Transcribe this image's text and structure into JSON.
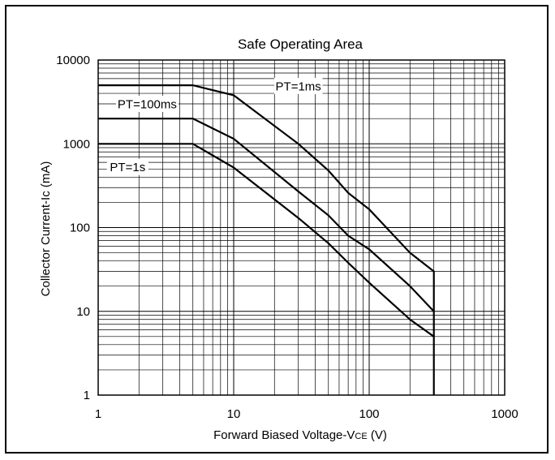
{
  "chart_data": {
    "type": "line",
    "title": "Safe Operating Area",
    "xlabel": "Forward Biased Voltage-VCE (V)",
    "xlabel_main": "Forward Biased Voltage-V",
    "xlabel_sub": "CE",
    "xlabel_unit": " (V)",
    "ylabel": "Collector Current-Ic (mA)",
    "xscale": "log",
    "yscale": "log",
    "xlim": [
      1,
      1000
    ],
    "ylim": [
      1,
      10000
    ],
    "grid": true,
    "x_ticks": [
      "1",
      "10",
      "100",
      "1000"
    ],
    "y_ticks": [
      "1",
      "10",
      "100",
      "1000",
      "10000"
    ],
    "series": [
      {
        "name": "PT=1ms",
        "points": [
          [
            1,
            5000
          ],
          [
            5,
            5000
          ],
          [
            10,
            3800
          ],
          [
            30,
            1000
          ],
          [
            50,
            480
          ],
          [
            70,
            260
          ],
          [
            100,
            165
          ],
          [
            200,
            50
          ],
          [
            300,
            30
          ],
          [
            300,
            1
          ]
        ]
      },
      {
        "name": "PT=100ms",
        "points": [
          [
            1,
            2000
          ],
          [
            5,
            2000
          ],
          [
            10,
            1150
          ],
          [
            30,
            270
          ],
          [
            50,
            140
          ],
          [
            70,
            80
          ],
          [
            100,
            55
          ],
          [
            200,
            20
          ],
          [
            300,
            10
          ]
        ]
      },
      {
        "name": "PT=1s",
        "points": [
          [
            1,
            1000
          ],
          [
            5,
            1000
          ],
          [
            10,
            520
          ],
          [
            30,
            130
          ],
          [
            50,
            65
          ],
          [
            70,
            38
          ],
          [
            100,
            22
          ],
          [
            200,
            8
          ],
          [
            300,
            5
          ]
        ]
      }
    ],
    "annotations": [
      "PT=1ms",
      "PT=100ms",
      "PT=1s"
    ]
  }
}
